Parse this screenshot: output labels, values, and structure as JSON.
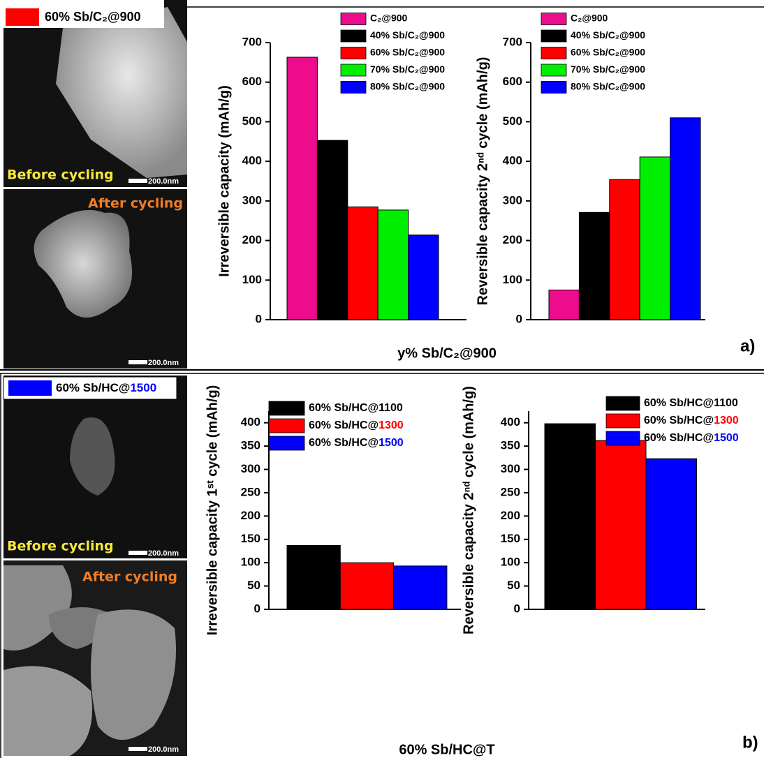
{
  "images": [
    {
      "label": "60% Sb/C₂@900",
      "before": "Before cycling",
      "after": "After cycling",
      "scale_bars": [
        "200.0nm",
        "200.0nm"
      ]
    },
    {
      "label": "60% Sb/HC@1500",
      "before": "Before cycling",
      "after": "After cycling",
      "scale_bars": [
        "200.0nm",
        "200.0nm"
      ]
    }
  ],
  "x_labels": [
    "y% Sb/C₂@900",
    "60% Sb/HC@T"
  ],
  "panel_labels": [
    "a)",
    "b)"
  ],
  "chart_data": [
    {
      "type": "bar",
      "y_label": "Irreversible capacity (mAh/g)",
      "categories": [
        null
      ],
      "ylim": [
        0,
        700
      ],
      "yticks": [
        0,
        100,
        200,
        300,
        400,
        500,
        600,
        700
      ],
      "series": [
        {
          "name": "C₂@900",
          "color": "#ec0c8c",
          "values": [
            663
          ]
        },
        {
          "name": "40% Sb/C₂@900",
          "color": "#000000",
          "values": [
            453
          ]
        },
        {
          "name": "60% Sb/C₂@900",
          "color": "#ff0000",
          "values": [
            285
          ]
        },
        {
          "name": "70% Sb/C₂@900",
          "color": "#00ee00",
          "values": [
            277
          ]
        },
        {
          "name": "80% Sb/C₂@900",
          "color": "#0000ff",
          "values": [
            214
          ]
        }
      ]
    },
    {
      "type": "bar",
      "y_label": "Reversible capacity 2ⁿᵈ cycle (mAh/g)",
      "categories": [
        null
      ],
      "ylim": [
        0,
        700
      ],
      "yticks": [
        0,
        100,
        200,
        300,
        400,
        500,
        600,
        700
      ],
      "series": [
        {
          "name": "C₂@900",
          "color": "#ec0c8c",
          "values": [
            75
          ]
        },
        {
          "name": "40% Sb/C₂@900",
          "color": "#000000",
          "values": [
            271
          ]
        },
        {
          "name": "60% Sb/C₂@900",
          "color": "#ff0000",
          "values": [
            354
          ]
        },
        {
          "name": "70% Sb/C₂@900",
          "color": "#00ee00",
          "values": [
            411
          ]
        },
        {
          "name": "80% Sb/C₂@900",
          "color": "#0000ff",
          "values": [
            510
          ]
        }
      ]
    },
    {
      "type": "bar",
      "y_label": "Irreversible capacity 1ˢᵗ cycle (mAh/g)",
      "categories": [
        null
      ],
      "ylim": [
        0,
        425
      ],
      "yticks": [
        0,
        50,
        100,
        150,
        200,
        250,
        300,
        350,
        400
      ],
      "series": [
        {
          "name": "60% Sb/HC@1100",
          "color": "#000000",
          "values": [
            137
          ]
        },
        {
          "name": "60% Sb/HC@1300",
          "color": "#ff0000",
          "values": [
            100
          ]
        },
        {
          "name": "60% Sb/HC@1500",
          "color": "#0000ff",
          "values": [
            93
          ]
        }
      ]
    },
    {
      "type": "bar",
      "y_label": "Reversible capacity 2ⁿᵈ cycle (mAh/g)",
      "categories": [
        null
      ],
      "ylim": [
        0,
        425
      ],
      "yticks": [
        0,
        50,
        100,
        150,
        200,
        250,
        300,
        350,
        400
      ],
      "series": [
        {
          "name": "60% Sb/HC@1100",
          "color": "#000000",
          "values": [
            398
          ]
        },
        {
          "name": "60% Sb/HC@1300",
          "color": "#ff0000",
          "values": [
            362
          ]
        },
        {
          "name": "60% Sb/HC@1500",
          "color": "#0000ff",
          "values": [
            323
          ]
        }
      ]
    }
  ]
}
